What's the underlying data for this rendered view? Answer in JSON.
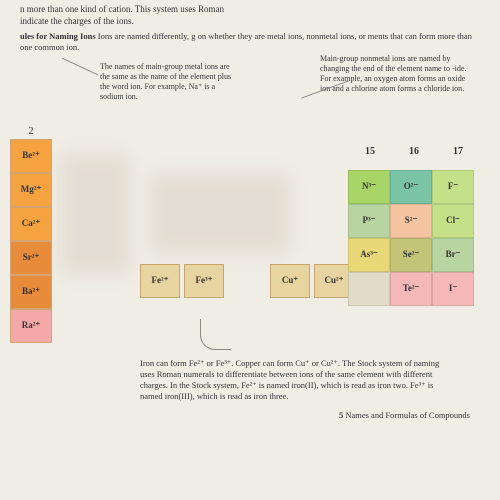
{
  "top1": "n more than one kind of cation. This system uses Roman",
  "top2": "indicate the charges of the ions.",
  "rules_title": "ules for Naming Ions",
  "rules_text": " Ions are named differently, g on whether they are metal ions, nonmetal ions, or ments that can form more than one common ion.",
  "note_left": "The names of main-group metal ions are the same as the name of the element plus the word ion. For example, Na⁺ is a sodium ion.",
  "note_right": "Main-group nonmetal ions are named by changing the end of the element name to -ide. For example, an oxygen atom forms an oxide ion and a chlorine atom forms a chloride ion.",
  "col2_hdr": "2",
  "left_cells": [
    "Be²⁺",
    "Mg²⁺",
    "Ca²⁺",
    "Sr²⁺",
    "Ba²⁺",
    "Ra²⁺"
  ],
  "mid1": [
    "Fe²⁺",
    "Fe³⁺"
  ],
  "mid2": [
    "Cu⁺",
    "Cu²⁺"
  ],
  "right_hdrs": [
    "15",
    "16",
    "17"
  ],
  "rrows": [
    [
      "N³⁻",
      "O²⁻",
      "F⁻"
    ],
    [
      "P³⁻",
      "S²⁻",
      "Cl⁻"
    ],
    [
      "As³⁻",
      "Se²⁻",
      "Br⁻"
    ],
    [
      "",
      "Te²⁻",
      "I⁻"
    ]
  ],
  "bottom": "Iron can form Fe²⁺ or Fe³⁺. Copper can form Cu⁺ or Cu²⁺. The Stock system of naming uses Roman numerals to differentiate between ions of the same element with different charges. In the Stock system, Fe²⁺ is named iron(II), which is read as iron two. Fe³⁺ is named iron(III), which is read as iron three.",
  "footer_num": "5",
  "footer_text": " Names and Formulas of Compounds",
  "colors": {
    "row0": [
      "green",
      "teal",
      "lime"
    ],
    "row1": [
      "sage",
      "peach",
      "lime"
    ],
    "row2": [
      "yellow",
      "olive",
      "sage"
    ],
    "row3": [
      "faded",
      "rose",
      "rose"
    ]
  },
  "left_colors": [
    "orange",
    "orange",
    "orange",
    "dark",
    "dark",
    "pink"
  ]
}
